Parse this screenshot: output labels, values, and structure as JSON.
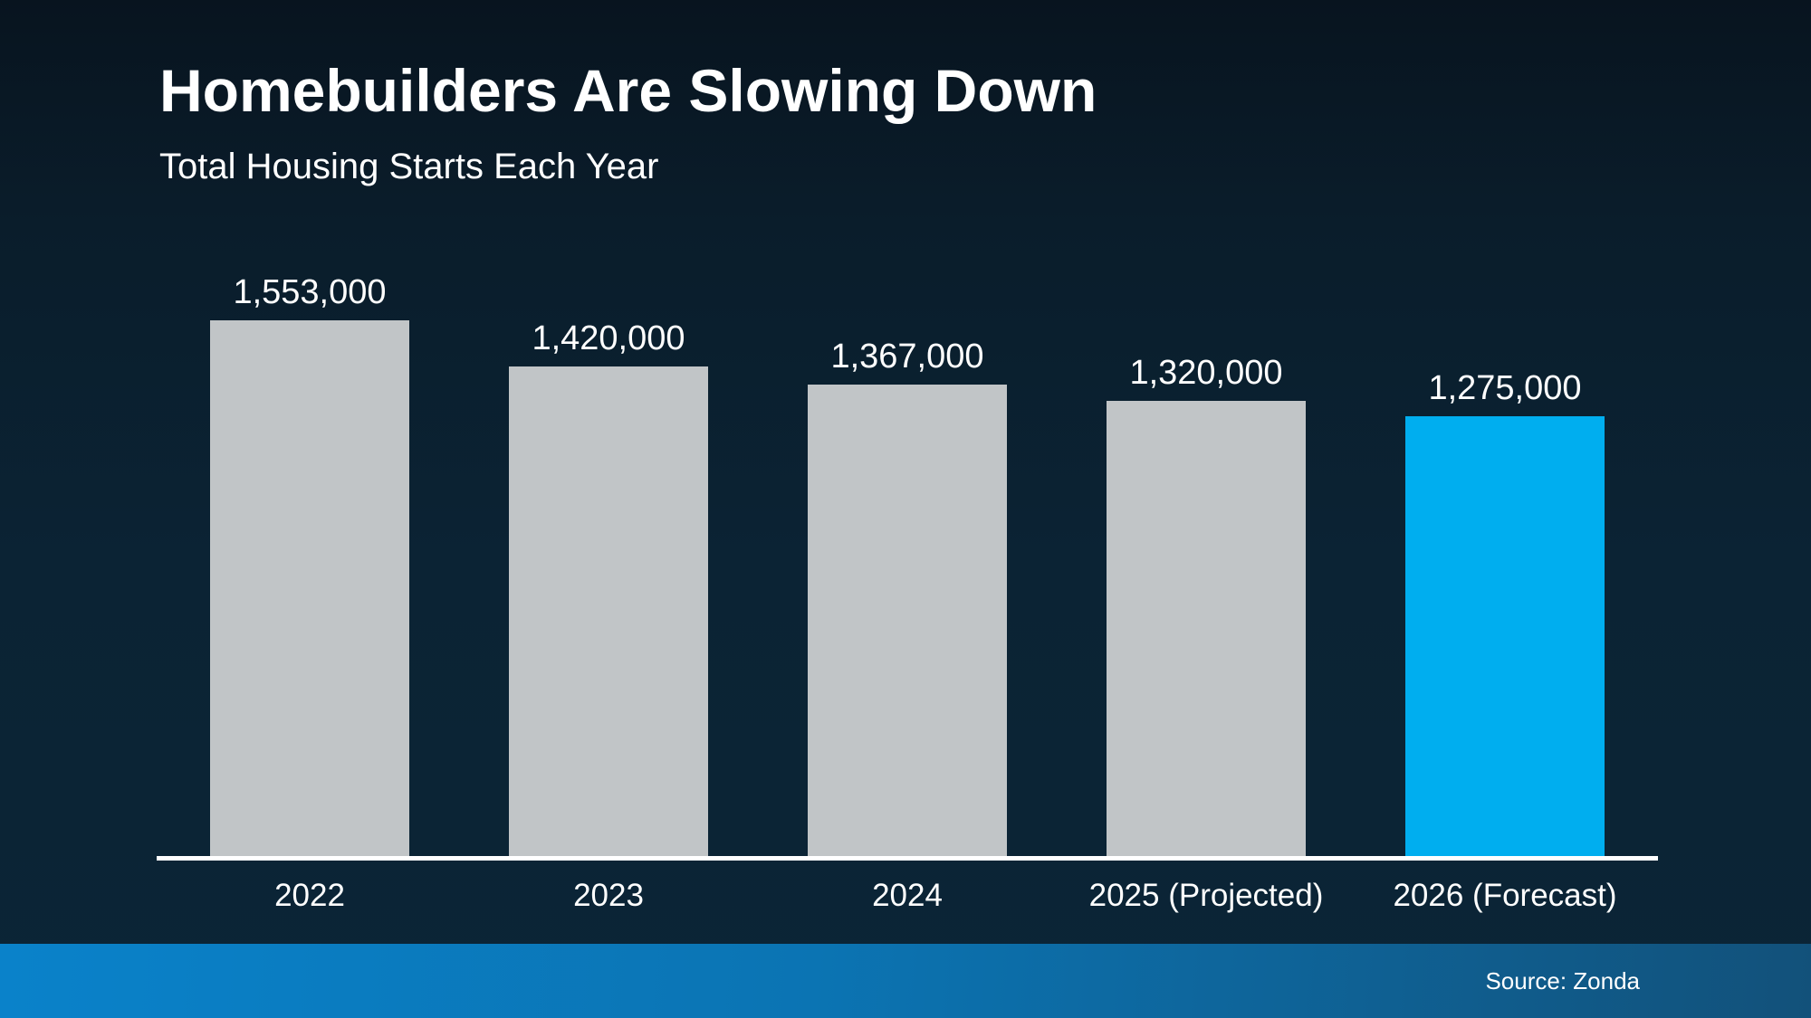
{
  "header": {
    "title": "Homebuilders Are Slowing Down",
    "subtitle": "Total Housing Starts Each Year"
  },
  "chart_data": {
    "type": "bar",
    "title": "Homebuilders Are Slowing Down",
    "subtitle": "Total Housing Starts Each Year",
    "categories": [
      "2022",
      "2023",
      "2024",
      "2025 (Projected)",
      "2026 (Forecast)"
    ],
    "values": [
      1553000,
      1420000,
      1367000,
      1320000,
      1275000
    ],
    "value_labels": [
      "1,553,000",
      "1,420,000",
      "1,367,000",
      "1,320,000",
      "1,275,000"
    ],
    "highlight_index": 4,
    "ylim": [
      0,
      1650000
    ],
    "grid": false,
    "legend": false,
    "xlabel": "",
    "ylabel": "",
    "colors": {
      "bar": "#c1c5c7",
      "highlight": "#00aeef",
      "axis": "#ffffff",
      "background_top": "#08141f",
      "background_bottom": "#0b2536",
      "footer_left": "#0a82ca",
      "footer_right": "#12517a",
      "text": "#ffffff"
    }
  },
  "footer": {
    "source": "Source: Zonda"
  }
}
